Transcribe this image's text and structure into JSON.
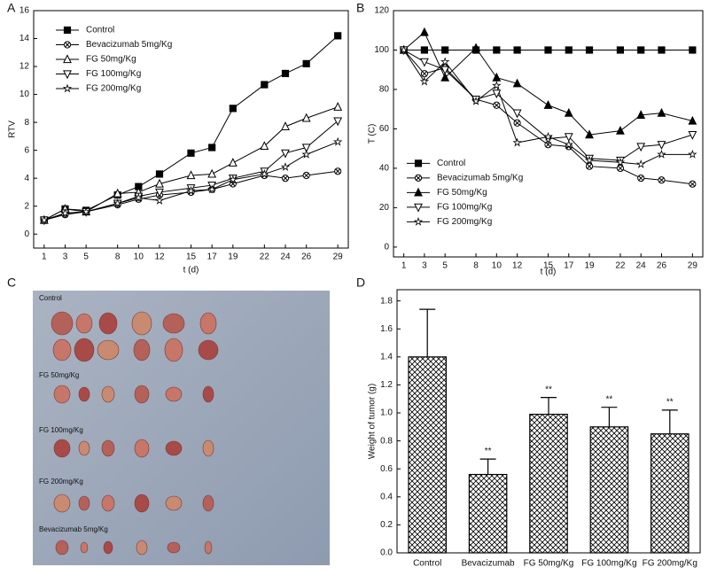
{
  "chart_data": [
    {
      "type": "line",
      "label": "A",
      "x_label": "t (d)",
      "y_label": "RTV",
      "x": [
        1,
        3,
        5,
        8,
        10,
        12,
        15,
        17,
        19,
        22,
        24,
        26,
        29
      ],
      "xlim": [
        0,
        30
      ],
      "xticks": [
        1,
        3,
        5,
        8,
        10,
        12,
        15,
        17,
        19,
        22,
        24,
        26,
        29
      ],
      "ylim": [
        -1,
        16
      ],
      "yticks": [
        0,
        2,
        4,
        6,
        8,
        10,
        12,
        14,
        16
      ],
      "legend": "upper left",
      "series": [
        {
          "name": "Control",
          "color": "#000000",
          "marker": "square",
          "values": [
            1,
            1.8,
            1.7,
            2.8,
            3.4,
            4.3,
            5.8,
            6.2,
            9.0,
            10.7,
            11.5,
            12.2,
            14.2
          ]
        },
        {
          "name": "Bevacizumab 5mg/Kg",
          "color": "#000000",
          "marker": "circle-x",
          "values": [
            1,
            1.4,
            1.6,
            2.1,
            2.5,
            2.8,
            3.0,
            3.2,
            3.6,
            4.2,
            4.0,
            4.2,
            4.5
          ]
        },
        {
          "name": "FG 50mg/Kg",
          "color": "#000000",
          "marker": "triangle-open",
          "values": [
            1,
            1.8,
            1.6,
            2.9,
            3.0,
            3.6,
            4.2,
            4.3,
            5.1,
            6.3,
            7.7,
            8.3,
            9.1
          ]
        },
        {
          "name": "FG 100mg/Kg",
          "color": "#000000",
          "marker": "triangle-down",
          "values": [
            1,
            1.5,
            1.6,
            2.2,
            2.7,
            3.0,
            3.3,
            3.5,
            4.0,
            4.5,
            5.8,
            6.2,
            8.1
          ]
        },
        {
          "name": "FG 200mg/Kg",
          "color": "#000000",
          "marker": "star",
          "values": [
            1,
            1.5,
            1.6,
            2.2,
            2.6,
            2.4,
            3.1,
            3.2,
            3.9,
            4.3,
            4.8,
            5.7,
            6.6
          ]
        }
      ]
    },
    {
      "type": "line",
      "label": "B",
      "x_label": "t (d)",
      "y_label": "T (C)",
      "x": [
        1,
        3,
        5,
        8,
        10,
        12,
        15,
        17,
        19,
        22,
        24,
        26,
        29
      ],
      "xlim": [
        0,
        30
      ],
      "xticks": [
        1,
        3,
        5,
        8,
        10,
        12,
        15,
        17,
        19,
        22,
        24,
        26,
        29
      ],
      "ylim": [
        -5,
        120
      ],
      "yticks": [
        0,
        20,
        40,
        60,
        80,
        100,
        120
      ],
      "legend": "center left",
      "series": [
        {
          "name": "Control",
          "color": "#000000",
          "marker": "square",
          "values": [
            100,
            100,
            100,
            100,
            100,
            100,
            100,
            100,
            100,
            100,
            100,
            100,
            100
          ]
        },
        {
          "name": "Bevacizumab 5mg/Kg",
          "color": "#000000",
          "marker": "circle-x",
          "values": [
            100,
            88,
            91,
            75,
            72,
            63,
            52,
            51,
            41,
            40,
            35,
            34,
            32
          ]
        },
        {
          "name": "FG 50mg/Kg",
          "color": "#000000",
          "marker": "triangle",
          "values": [
            100,
            109,
            86,
            101,
            86,
            83,
            72,
            68,
            57,
            59,
            67,
            68,
            64
          ]
        },
        {
          "name": "FG 100mg/Kg",
          "color": "#000000",
          "marker": "triangle-down",
          "values": [
            100,
            94,
            90,
            75,
            78,
            68,
            55,
            56,
            45,
            44,
            51,
            52,
            57
          ]
        },
        {
          "name": "FG 200mg/Kg",
          "color": "#000000",
          "marker": "star",
          "values": [
            100,
            84,
            94,
            74,
            82,
            53,
            56,
            52,
            44,
            43,
            42,
            47,
            47
          ]
        }
      ]
    },
    {
      "type": "bar",
      "label": "D",
      "y_label": "Weight of tumor (g)",
      "categories": [
        "Control",
        "Bevacizumab",
        "FG 50mg/Kg",
        "FG 100mg/Kg",
        "FG 200mg/Kg"
      ],
      "values": [
        1.4,
        0.56,
        0.99,
        0.9,
        0.85
      ],
      "errors": [
        0.34,
        0.11,
        0.12,
        0.14,
        0.17
      ],
      "significance": [
        null,
        "**",
        "**",
        "**",
        "**"
      ],
      "color": "#000000",
      "fill": "crosshatch",
      "ylim": [
        0,
        1.88
      ],
      "yticks": [
        {
          "value": 0,
          "label": "0.0"
        },
        0.2,
        0.4,
        0.6,
        0.8,
        {
          "value": 1,
          "label": "1.0"
        },
        1.2,
        1.4,
        1.6,
        1.8
      ]
    }
  ],
  "photo": {
    "label": "C",
    "groups": [
      "Control",
      "FG 50mg/Kg",
      "FG 100mg/Kg",
      "FG 200mg/Kg",
      "Bevacizumab 5mg/Kg"
    ]
  }
}
